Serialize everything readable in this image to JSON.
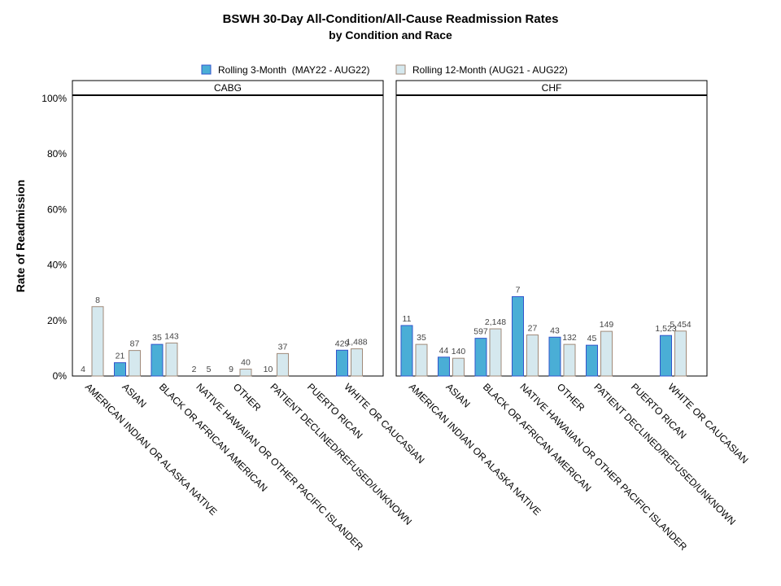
{
  "chart_data": {
    "type": "bar",
    "title": "BSWH 30-Day All-Condition/All-Cause Readmission Rates",
    "subtitle": "by Condition and Race",
    "ylabel": "Rate of Readmission",
    "ylim": [
      0,
      100
    ],
    "yticks": [
      "0%",
      "20%",
      "40%",
      "60%",
      "80%",
      "100%"
    ],
    "ytick_values": [
      0,
      20,
      40,
      60,
      80,
      100
    ],
    "legend_placement": "top-center",
    "grid": false,
    "categories": [
      "AMERICAN INDIAN OR ALASKA NATIVE",
      "ASIAN",
      "BLACK OR AFRICAN AMERICAN",
      "NATIVE HAWAIIAN OR OTHER PACIFIC ISLANDER",
      "OTHER",
      "PATIENT DECLINED/REFUSED/UNKNOWN",
      "PUERTO RICAN",
      "WHITE OR CAUCASIAN"
    ],
    "series_meta": [
      {
        "name": "Rolling 3-Month  (MAY22 - AUG22)",
        "color": "#4aaed6",
        "stroke": "#3355cc"
      },
      {
        "name": "Rolling 12-Month (AUG21 - AUG22)",
        "color": "#d5e8ee",
        "stroke": "#a08a7a"
      }
    ],
    "panels": [
      {
        "name": "CABG",
        "series": [
          {
            "name": "Rolling 3-Month  (MAY22 - AUG22)",
            "values": [
              0,
              4.8,
              11.4,
              0,
              0,
              0,
              null,
              9.3
            ],
            "labels": [
              "4",
              "21",
              "35",
              "2",
              "9",
              "10",
              "",
              "429"
            ]
          },
          {
            "name": "Rolling 12-Month (AUG21 - AUG22)",
            "values": [
              25.0,
              9.2,
              11.9,
              0,
              2.5,
              8.1,
              null,
              9.8
            ],
            "labels": [
              "8",
              "87",
              "143",
              "5",
              "40",
              "37",
              "",
              "1,488"
            ]
          }
        ]
      },
      {
        "name": "CHF",
        "series": [
          {
            "name": "Rolling 3-Month  (MAY22 - AUG22)",
            "values": [
              18.2,
              6.8,
              13.6,
              28.6,
              14.0,
              11.1,
              null,
              14.6
            ],
            "labels": [
              "11",
              "44",
              "597",
              "7",
              "43",
              "45",
              "",
              "1,523"
            ]
          },
          {
            "name": "Rolling 12-Month (AUG21 - AUG22)",
            "values": [
              11.4,
              6.4,
              17.0,
              14.8,
              11.4,
              16.1,
              null,
              16.2
            ],
            "labels": [
              "35",
              "140",
              "2,148",
              "27",
              "132",
              "149",
              "",
              "5,454"
            ]
          }
        ]
      }
    ]
  }
}
